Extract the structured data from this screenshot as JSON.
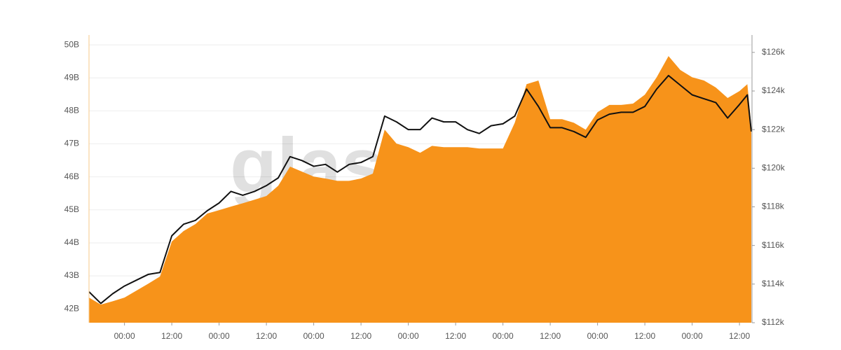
{
  "chart_data": {
    "type": "area-line",
    "watermark": "glassnode",
    "x": [
      -9,
      -6,
      -3,
      0,
      3,
      6,
      9,
      12,
      15,
      18,
      21,
      24,
      27,
      30,
      33,
      36,
      39,
      42,
      45,
      48,
      51,
      54,
      57,
      60,
      63,
      66,
      69,
      72,
      75,
      78,
      81,
      84,
      87,
      90,
      93,
      96,
      99,
      102,
      105,
      108,
      111,
      114,
      117,
      120,
      123,
      126,
      129,
      132,
      135,
      138,
      141,
      144,
      147,
      150,
      153,
      156,
      158,
      159
    ],
    "xlim": [
      -9,
      159
    ],
    "xticks": [
      {
        "value": 0,
        "label": "00:00"
      },
      {
        "value": 12,
        "label": "12:00"
      },
      {
        "value": 24,
        "label": "00:00"
      },
      {
        "value": 36,
        "label": "12:00"
      },
      {
        "value": 48,
        "label": "00:00"
      },
      {
        "value": 60,
        "label": "12:00"
      },
      {
        "value": 72,
        "label": "00:00"
      },
      {
        "value": 84,
        "label": "12:00"
      },
      {
        "value": 96,
        "label": "00:00"
      },
      {
        "value": 108,
        "label": "12:00"
      },
      {
        "value": 120,
        "label": "00:00"
      },
      {
        "value": 132,
        "label": "12:00"
      },
      {
        "value": 144,
        "label": "00:00"
      },
      {
        "value": 156,
        "label": "12:00"
      }
    ],
    "ylim": [
      41.58,
      50.3
    ],
    "yticks": [
      {
        "value": 42,
        "label": "42B"
      },
      {
        "value": 43,
        "label": "43B"
      },
      {
        "value": 44,
        "label": "44B"
      },
      {
        "value": 45,
        "label": "45B"
      },
      {
        "value": 46,
        "label": "46B"
      },
      {
        "value": 47,
        "label": "47B"
      },
      {
        "value": 48,
        "label": "48B"
      },
      {
        "value": 49,
        "label": "49B"
      },
      {
        "value": 50,
        "label": "50B"
      }
    ],
    "y2lim": [
      112,
      126.9
    ],
    "y2ticks": [
      {
        "value": 112,
        "label": "$112k"
      },
      {
        "value": 114,
        "label": "$114k"
      },
      {
        "value": 116,
        "label": "$116k"
      },
      {
        "value": 118,
        "label": "$118k"
      },
      {
        "value": 120,
        "label": "$120k"
      },
      {
        "value": 122,
        "label": "$122k"
      },
      {
        "value": 124,
        "label": "$124k"
      },
      {
        "value": 126,
        "label": "$126k"
      }
    ],
    "grid": true,
    "series": [
      {
        "type": "area",
        "color": "#f7931a",
        "values": [
          42.34,
          42.13,
          42.23,
          42.34,
          42.55,
          42.76,
          42.98,
          44.04,
          44.36,
          44.57,
          44.89,
          44.99,
          45.1,
          45.2,
          45.31,
          45.42,
          45.73,
          46.31,
          46.16,
          46.01,
          45.95,
          45.88,
          45.88,
          45.95,
          46.1,
          47.43,
          47.01,
          46.9,
          46.73,
          46.94,
          46.9,
          46.9,
          46.9,
          46.86,
          46.86,
          46.86,
          47.64,
          48.81,
          48.92,
          47.75,
          47.75,
          47.64,
          47.43,
          47.96,
          48.18,
          48.18,
          48.22,
          48.49,
          49.02,
          49.66,
          49.24,
          49.02,
          48.92,
          48.71,
          48.39,
          48.6,
          48.81,
          47.54
        ]
      },
      {
        "type": "line",
        "color": "#111111",
        "axis": "y2",
        "values": [
          113.6,
          113.0,
          113.5,
          113.9,
          114.2,
          114.5,
          114.6,
          116.5,
          117.1,
          117.3,
          117.8,
          118.2,
          118.8,
          118.6,
          118.8,
          119.1,
          119.5,
          120.6,
          120.4,
          120.1,
          120.2,
          119.8,
          120.2,
          120.3,
          120.6,
          122.7,
          122.4,
          122.0,
          122.0,
          122.6,
          122.4,
          122.4,
          122.0,
          121.8,
          122.2,
          122.3,
          122.7,
          124.1,
          123.2,
          122.1,
          122.1,
          121.9,
          121.6,
          122.5,
          122.8,
          122.9,
          122.9,
          123.2,
          124.1,
          124.8,
          124.3,
          123.8,
          123.6,
          123.4,
          122.6,
          123.3,
          123.8,
          121.9
        ]
      }
    ]
  }
}
